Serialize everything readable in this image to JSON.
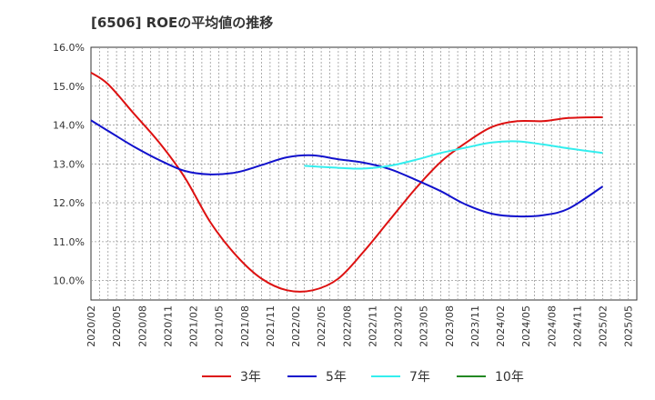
{
  "title": "[6506]  ROEの平均値の推移",
  "chart_data": {
    "type": "line",
    "title": "[6506]  ROEの平均値の推移",
    "xlabel": "",
    "ylabel": "",
    "ylim": [
      9.5,
      16.0
    ],
    "y_ticks": [
      10.0,
      11.0,
      12.0,
      13.0,
      14.0,
      15.0,
      16.0
    ],
    "y_tick_labels": [
      "10.0%",
      "11.0%",
      "12.0%",
      "13.0%",
      "14.0%",
      "15.0%",
      "16.0%"
    ],
    "x_range": [
      2020.0833,
      2025.4167
    ],
    "x_tick_labels": [
      "2020/02",
      "2020/05",
      "2020/08",
      "2020/11",
      "2021/02",
      "2021/05",
      "2021/08",
      "2021/11",
      "2022/02",
      "2022/05",
      "2022/08",
      "2022/11",
      "2023/02",
      "2023/05",
      "2023/08",
      "2023/11",
      "2024/02",
      "2024/05",
      "2024/08",
      "2024/11",
      "2025/02",
      "2025/05"
    ],
    "grid": true,
    "legend_position": "bottom",
    "series": [
      {
        "name": "3年",
        "color": "#dd1111",
        "points": [
          [
            2020.0833,
            15.35
          ],
          [
            2020.25,
            15.05
          ],
          [
            2020.5,
            14.3
          ],
          [
            2020.75,
            13.55
          ],
          [
            2021.0,
            12.65
          ],
          [
            2021.25,
            11.5
          ],
          [
            2021.5,
            10.65
          ],
          [
            2021.75,
            10.05
          ],
          [
            2022.0,
            9.75
          ],
          [
            2022.25,
            9.75
          ],
          [
            2022.5,
            10.05
          ],
          [
            2022.75,
            10.75
          ],
          [
            2023.0,
            11.55
          ],
          [
            2023.25,
            12.35
          ],
          [
            2023.5,
            13.05
          ],
          [
            2023.75,
            13.55
          ],
          [
            2024.0,
            13.95
          ],
          [
            2024.25,
            14.1
          ],
          [
            2024.5,
            14.1
          ],
          [
            2024.75,
            14.18
          ],
          [
            2025.0833,
            14.2
          ]
        ]
      },
      {
        "name": "5年",
        "color": "#1111cc",
        "points": [
          [
            2020.0833,
            14.12
          ],
          [
            2020.25,
            13.85
          ],
          [
            2020.5,
            13.45
          ],
          [
            2020.75,
            13.1
          ],
          [
            2021.0,
            12.82
          ],
          [
            2021.25,
            12.73
          ],
          [
            2021.5,
            12.78
          ],
          [
            2021.75,
            12.97
          ],
          [
            2022.0,
            13.17
          ],
          [
            2022.25,
            13.22
          ],
          [
            2022.5,
            13.12
          ],
          [
            2022.75,
            13.03
          ],
          [
            2023.0,
            12.87
          ],
          [
            2023.25,
            12.6
          ],
          [
            2023.5,
            12.3
          ],
          [
            2023.75,
            11.95
          ],
          [
            2024.0,
            11.72
          ],
          [
            2024.25,
            11.65
          ],
          [
            2024.5,
            11.68
          ],
          [
            2024.75,
            11.85
          ],
          [
            2025.0833,
            12.42
          ]
        ]
      },
      {
        "name": "7年",
        "color": "#33eeee",
        "points": [
          [
            2022.1667,
            12.95
          ],
          [
            2022.5,
            12.9
          ],
          [
            2022.75,
            12.88
          ],
          [
            2023.0,
            12.95
          ],
          [
            2023.25,
            13.1
          ],
          [
            2023.5,
            13.28
          ],
          [
            2023.75,
            13.42
          ],
          [
            2024.0,
            13.55
          ],
          [
            2024.25,
            13.58
          ],
          [
            2024.5,
            13.5
          ],
          [
            2024.75,
            13.4
          ],
          [
            2025.0833,
            13.28
          ]
        ]
      },
      {
        "name": "10年",
        "color": "#228822",
        "points": []
      }
    ]
  }
}
